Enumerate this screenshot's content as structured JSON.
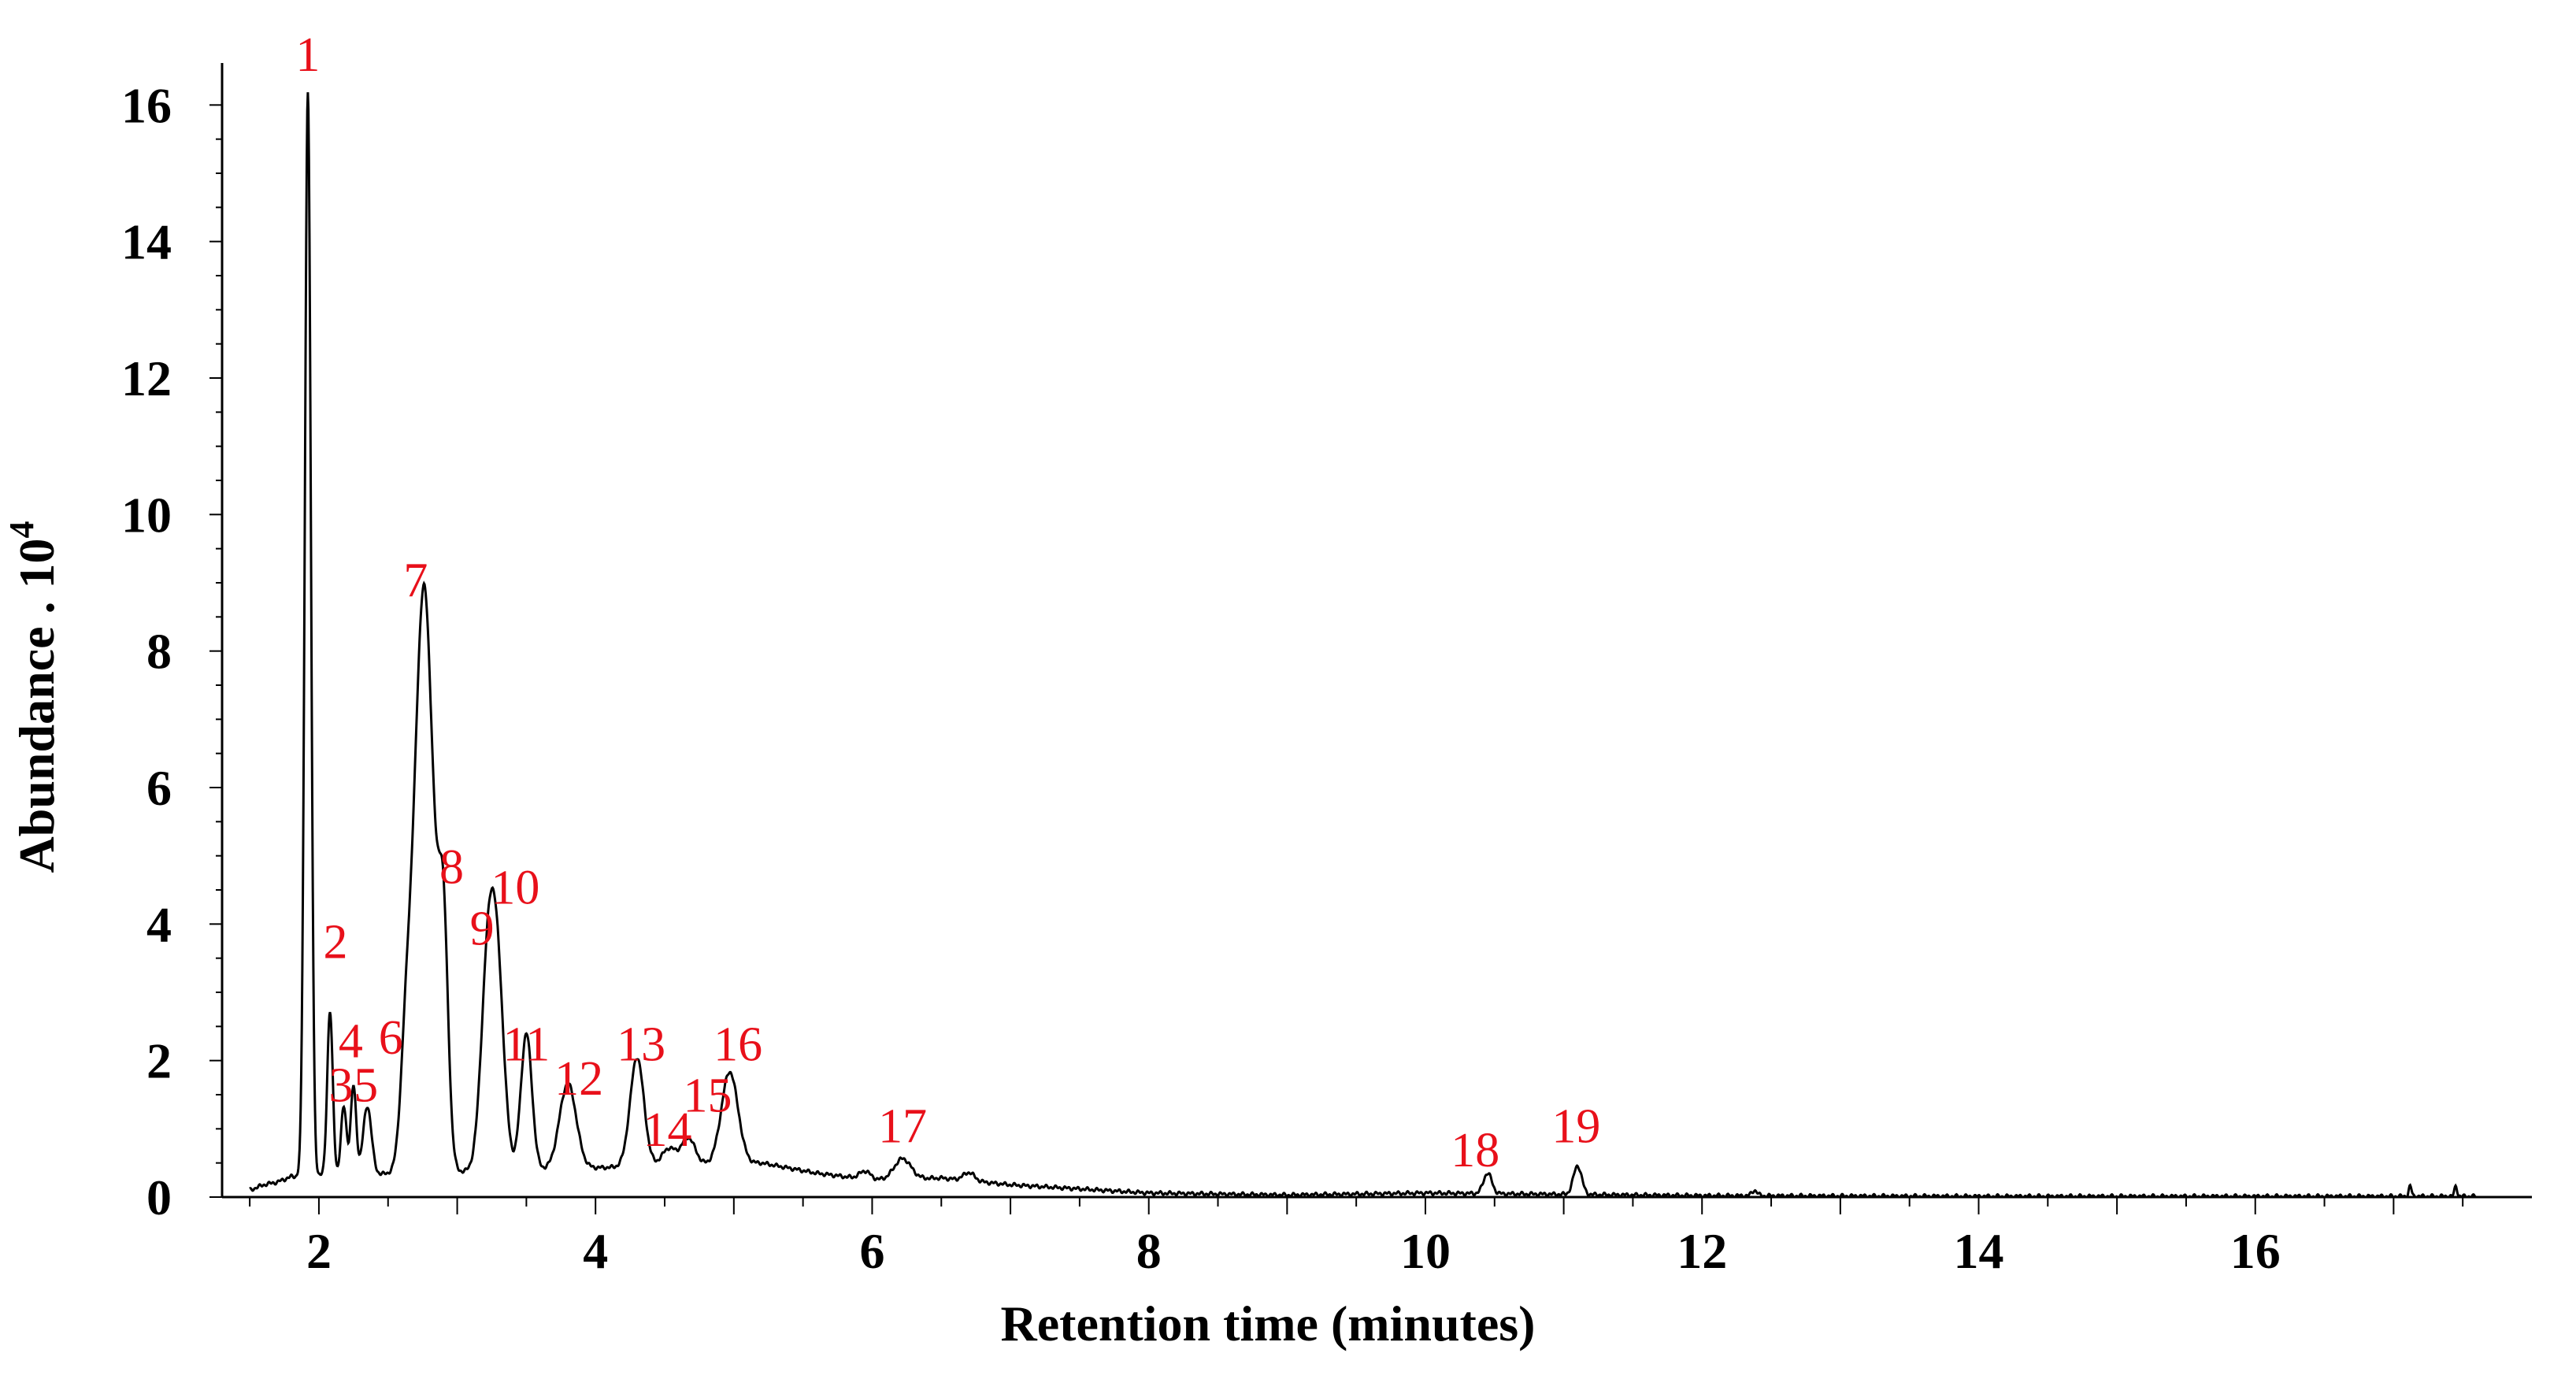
{
  "chart_data": {
    "type": "line",
    "title": "",
    "xlabel": "Retention time (minutes)",
    "ylabel_main": "Abundance . 10",
    "ylabel_exponent": "4",
    "xlim": [
      1.3,
      18.0
    ],
    "ylim": [
      0,
      16.5
    ],
    "x_ticks": [
      {
        "value": 2,
        "label": "2"
      },
      {
        "value": 4,
        "label": "4"
      },
      {
        "value": 6,
        "label": "6"
      },
      {
        "value": 8,
        "label": "8"
      },
      {
        "value": 10,
        "label": "10"
      },
      {
        "value": 12,
        "label": "12"
      },
      {
        "value": 14,
        "label": "14"
      },
      {
        "value": 16,
        "label": "16"
      }
    ],
    "y_ticks": [
      {
        "value": 0,
        "label": "0"
      },
      {
        "value": 2,
        "label": "2"
      },
      {
        "value": 4,
        "label": "4"
      },
      {
        "value": 6,
        "label": "6"
      },
      {
        "value": 8,
        "label": "8"
      },
      {
        "value": 10,
        "label": "10"
      },
      {
        "value": 12,
        "label": "12"
      },
      {
        "value": 14,
        "label": "14"
      },
      {
        "value": 16,
        "label": "16"
      }
    ],
    "line_color": "#000000",
    "label_color": "#e8101a",
    "baseline": [
      {
        "x": 1.5,
        "y": 0.1
      },
      {
        "x": 1.6,
        "y": 0.18
      },
      {
        "x": 1.7,
        "y": 0.22
      },
      {
        "x": 1.8,
        "y": 0.3
      },
      {
        "x": 5.2,
        "y": 0.5
      },
      {
        "x": 5.6,
        "y": 0.35
      },
      {
        "x": 6.0,
        "y": 0.25
      },
      {
        "x": 6.5,
        "y": 0.28
      },
      {
        "x": 7.0,
        "y": 0.18
      },
      {
        "x": 8.0,
        "y": 0.06
      },
      {
        "x": 9.0,
        "y": 0.03
      },
      {
        "x": 10.0,
        "y": 0.06
      },
      {
        "x": 12.0,
        "y": 0.02
      },
      {
        "x": 14.0,
        "y": 0.01
      },
      {
        "x": 16.0,
        "y": 0.01
      },
      {
        "x": 17.6,
        "y": 0.01
      }
    ],
    "peaks": [
      {
        "label": "1",
        "x": 1.92,
        "height": 15.9,
        "width": 0.022,
        "label_x": 1.92,
        "label_y": 16.5
      },
      {
        "label": "2",
        "x": 2.08,
        "height": 2.4,
        "width": 0.02,
        "label_x": 2.12,
        "label_y": 3.5
      },
      {
        "label": "3",
        "x": 2.18,
        "height": 1.0,
        "width": 0.02,
        "label_x": 2.16,
        "label_y": 1.4
      },
      {
        "label": "4",
        "x": 2.25,
        "height": 1.3,
        "width": 0.02,
        "label_x": 2.23,
        "label_y": 2.05
      },
      {
        "label": "5",
        "x": 2.35,
        "height": 1.0,
        "width": 0.03,
        "label_x": 2.34,
        "label_y": 1.4
      },
      {
        "label": "6",
        "x": 2.63,
        "height": 1.4,
        "width": 0.04,
        "label_x": 2.52,
        "label_y": 2.1
      },
      {
        "label": "7",
        "x": 2.76,
        "height": 8.6,
        "width": 0.07,
        "label_x": 2.7,
        "label_y": 8.8
      },
      {
        "label": "8",
        "x": 2.9,
        "height": 3.2,
        "width": 0.035,
        "label_x": 2.96,
        "label_y": 4.6
      },
      {
        "label": "9",
        "x": 3.22,
        "height": 2.7,
        "width": 0.05,
        "label_x": 3.18,
        "label_y": 3.7
      },
      {
        "label": "10",
        "x": 3.29,
        "height": 2.6,
        "width": 0.05,
        "label_x": 3.42,
        "label_y": 4.3
      },
      {
        "label": "11",
        "x": 3.5,
        "height": 2.0,
        "width": 0.04,
        "label_x": 3.5,
        "label_y": 2.0
      },
      {
        "label": "12",
        "x": 3.8,
        "height": 1.25,
        "width": 0.06,
        "label_x": 3.88,
        "label_y": 1.5
      },
      {
        "label": "13",
        "x": 4.3,
        "height": 1.6,
        "width": 0.05,
        "label_x": 4.33,
        "label_y": 2.0
      },
      {
        "label": "14",
        "x": 4.53,
        "height": 0.25,
        "width": 0.05,
        "label_x": 4.52,
        "label_y": 0.75
      },
      {
        "label": "15",
        "x": 4.67,
        "height": 0.4,
        "width": 0.05,
        "label_x": 4.81,
        "label_y": 1.25
      },
      {
        "label": "16",
        "x": 4.97,
        "height": 1.35,
        "width": 0.06,
        "label_x": 5.03,
        "label_y": 2.0
      },
      {
        "label": "17",
        "x": 6.22,
        "height": 0.3,
        "width": 0.06,
        "label_x": 6.22,
        "label_y": 0.8
      },
      {
        "label": "18",
        "x": 10.45,
        "height": 0.3,
        "width": 0.03,
        "label_x": 10.36,
        "label_y": 0.45
      },
      {
        "label": "19",
        "x": 11.1,
        "height": 0.42,
        "width": 0.03,
        "label_x": 11.09,
        "label_y": 0.8
      }
    ],
    "minor_peaks": [
      {
        "x": 5.95,
        "height": 0.12,
        "width": 0.04
      },
      {
        "x": 6.7,
        "height": 0.12,
        "width": 0.04
      },
      {
        "x": 12.38,
        "height": 0.08,
        "width": 0.02
      },
      {
        "x": 17.12,
        "height": 0.15,
        "width": 0.01
      },
      {
        "x": 17.45,
        "height": 0.15,
        "width": 0.01
      }
    ]
  }
}
